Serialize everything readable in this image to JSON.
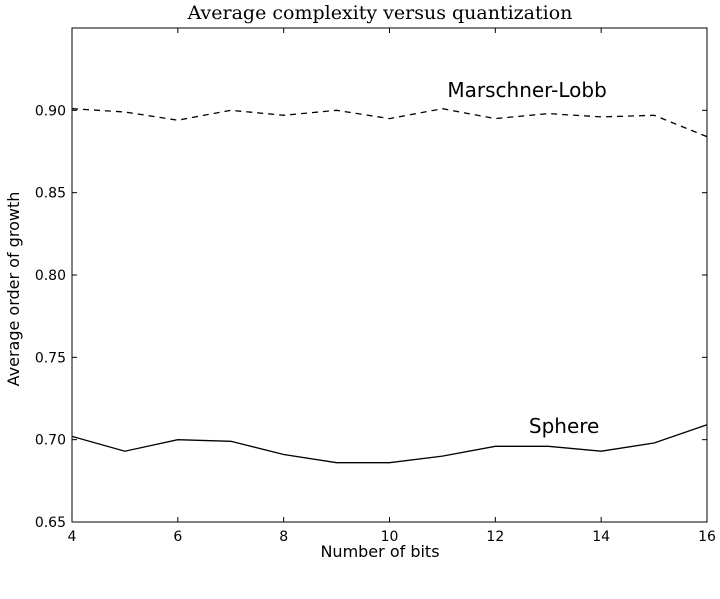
{
  "chart_data": {
    "type": "line",
    "title": "Average complexity versus quantization",
    "xlabel": "Number of bits",
    "ylabel": "Average order of growth",
    "xlim": [
      4,
      16
    ],
    "ylim": [
      0.65,
      0.95
    ],
    "xticks": [
      4,
      6,
      8,
      10,
      12,
      14,
      16
    ],
    "yticks": [
      0.65,
      0.7,
      0.75,
      0.8,
      0.85,
      0.9
    ],
    "ytick_labels": [
      "0.65",
      "0.70",
      "0.75",
      "0.80",
      "0.85",
      "0.90"
    ],
    "grid": false,
    "legend": "none",
    "x": [
      4,
      5,
      6,
      7,
      8,
      9,
      10,
      11,
      12,
      13,
      14,
      15,
      16
    ],
    "series": [
      {
        "name": "Marschner-Lobb",
        "style": "dashed",
        "color": "#000000",
        "values": [
          0.901,
          0.899,
          0.894,
          0.9,
          0.897,
          0.9,
          0.895,
          0.901,
          0.895,
          0.898,
          0.896,
          0.897,
          0.884
        ],
        "label_at": [
          12.6,
          0.908
        ]
      },
      {
        "name": "Sphere",
        "style": "solid",
        "color": "#000000",
        "values": [
          0.702,
          0.693,
          0.7,
          0.699,
          0.691,
          0.686,
          0.686,
          0.69,
          0.696,
          0.696,
          0.693,
          0.698,
          0.709
        ],
        "label_at": [
          13.3,
          0.704
        ]
      }
    ]
  }
}
